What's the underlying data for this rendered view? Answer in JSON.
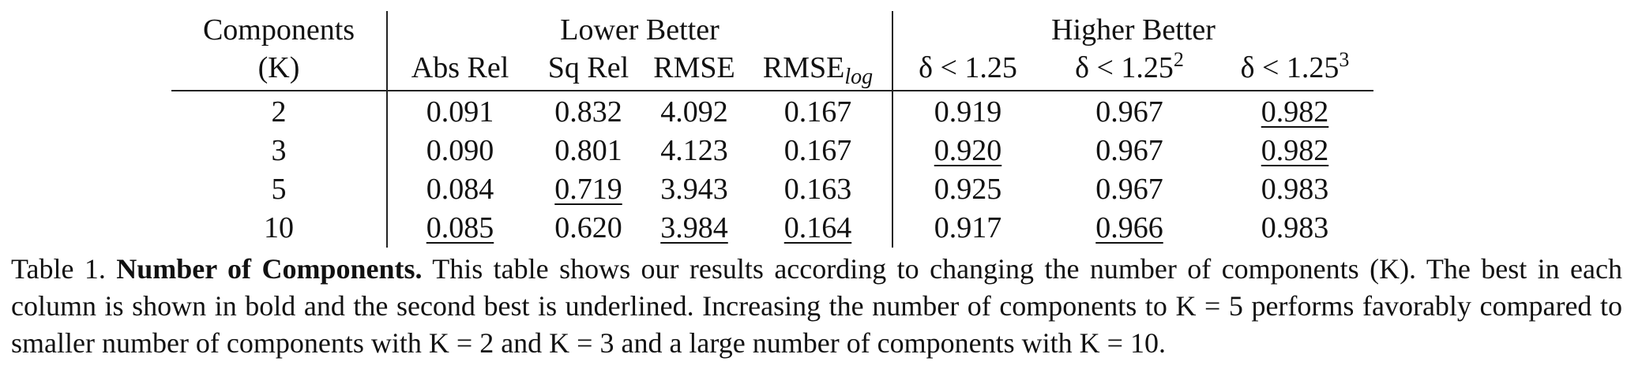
{
  "table": {
    "row_header_title": "Components",
    "row_header_sub": "(K)",
    "group_lower": "Lower Better",
    "group_higher": "Higher Better",
    "columns": {
      "abs_rel": "Abs Rel",
      "sq_rel": "Sq Rel",
      "rmse": "RMSE",
      "rmse_log_base": "RMSE",
      "rmse_log_sub": "log",
      "d1": "δ < 1.25",
      "d2_base": "δ < 1.25",
      "d2_exp": "2",
      "d3_base": "δ < 1.25",
      "d3_exp": "3"
    },
    "rows": [
      {
        "k": "2",
        "abs_rel": "0.091",
        "sq_rel": "0.832",
        "rmse": "4.092",
        "rmse_log": "0.167",
        "d1": "0.919",
        "d2": "0.967",
        "d3": "0.982"
      },
      {
        "k": "3",
        "abs_rel": "0.090",
        "sq_rel": "0.801",
        "rmse": "4.123",
        "rmse_log": "0.167",
        "d1": "0.920",
        "d2": "0.967",
        "d3": "0.982"
      },
      {
        "k": "5",
        "abs_rel": "0.084",
        "sq_rel": "0.719",
        "rmse": "3.943",
        "rmse_log": "0.163",
        "d1": "0.925",
        "d2": "0.967",
        "d3": "0.983"
      },
      {
        "k": "10",
        "abs_rel": "0.085",
        "sq_rel": "0.620",
        "rmse": "3.984",
        "rmse_log": "0.164",
        "d1": "0.917",
        "d2": "0.966",
        "d3": "0.983"
      }
    ]
  },
  "caption": {
    "prefix": "Table 1. ",
    "title": "Number of Components.",
    "body": " This table shows our results according to changing the number of components (K). The best in each column is shown in bold and the second best is underlined. Increasing the number of components to K = 5 performs favorably compared to smaller number of components with K = 2 and K = 3 and a large number of components with K = 10."
  }
}
